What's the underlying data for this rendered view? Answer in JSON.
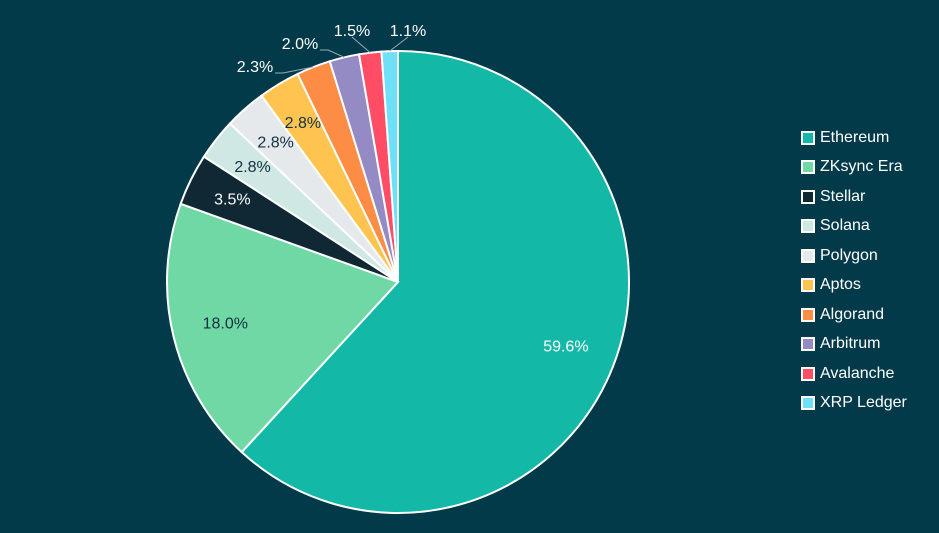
{
  "chart_data": {
    "type": "pie",
    "title": "",
    "legend_position": "right",
    "start_angle": "top, clockwise",
    "slices": [
      {
        "label": "Ethereum",
        "value": 59.6,
        "display": "59.6%",
        "color": "#14b8a6",
        "text_color": "#ffffff"
      },
      {
        "label": "ZKsync Era",
        "value": 18.0,
        "display": "18.0%",
        "color": "#6fd8a5",
        "text_color": "#123040"
      },
      {
        "label": "Stellar",
        "value": 3.5,
        "display": "3.5%",
        "color": "#0f2834",
        "text_color": "#ffffff"
      },
      {
        "label": "Solana",
        "value": 2.8,
        "display": "2.8%",
        "color": "#d0e8e4",
        "text_color": "#123040"
      },
      {
        "label": "Polygon",
        "value": 2.8,
        "display": "2.8%",
        "color": "#e6e9ec",
        "text_color": "#123040"
      },
      {
        "label": "Aptos",
        "value": 2.8,
        "display": "2.8%",
        "color": "#fec44f",
        "text_color": "#123040"
      },
      {
        "label": "Algorand",
        "value": 2.3,
        "display": "2.3%",
        "color": "#fd8c44",
        "text_color": "#ffffff",
        "outside": true
      },
      {
        "label": "Arbitrum",
        "value": 2.0,
        "display": "2.0%",
        "color": "#948bc5",
        "text_color": "#ffffff",
        "outside": true
      },
      {
        "label": "Avalanche",
        "value": 1.5,
        "display": "1.5%",
        "color": "#fe4d64",
        "text_color": "#ffffff",
        "outside": true
      },
      {
        "label": "XRP Ledger",
        "value": 1.1,
        "display": "1.1%",
        "color": "#6fe0f8",
        "text_color": "#ffffff",
        "outside": true
      }
    ]
  }
}
